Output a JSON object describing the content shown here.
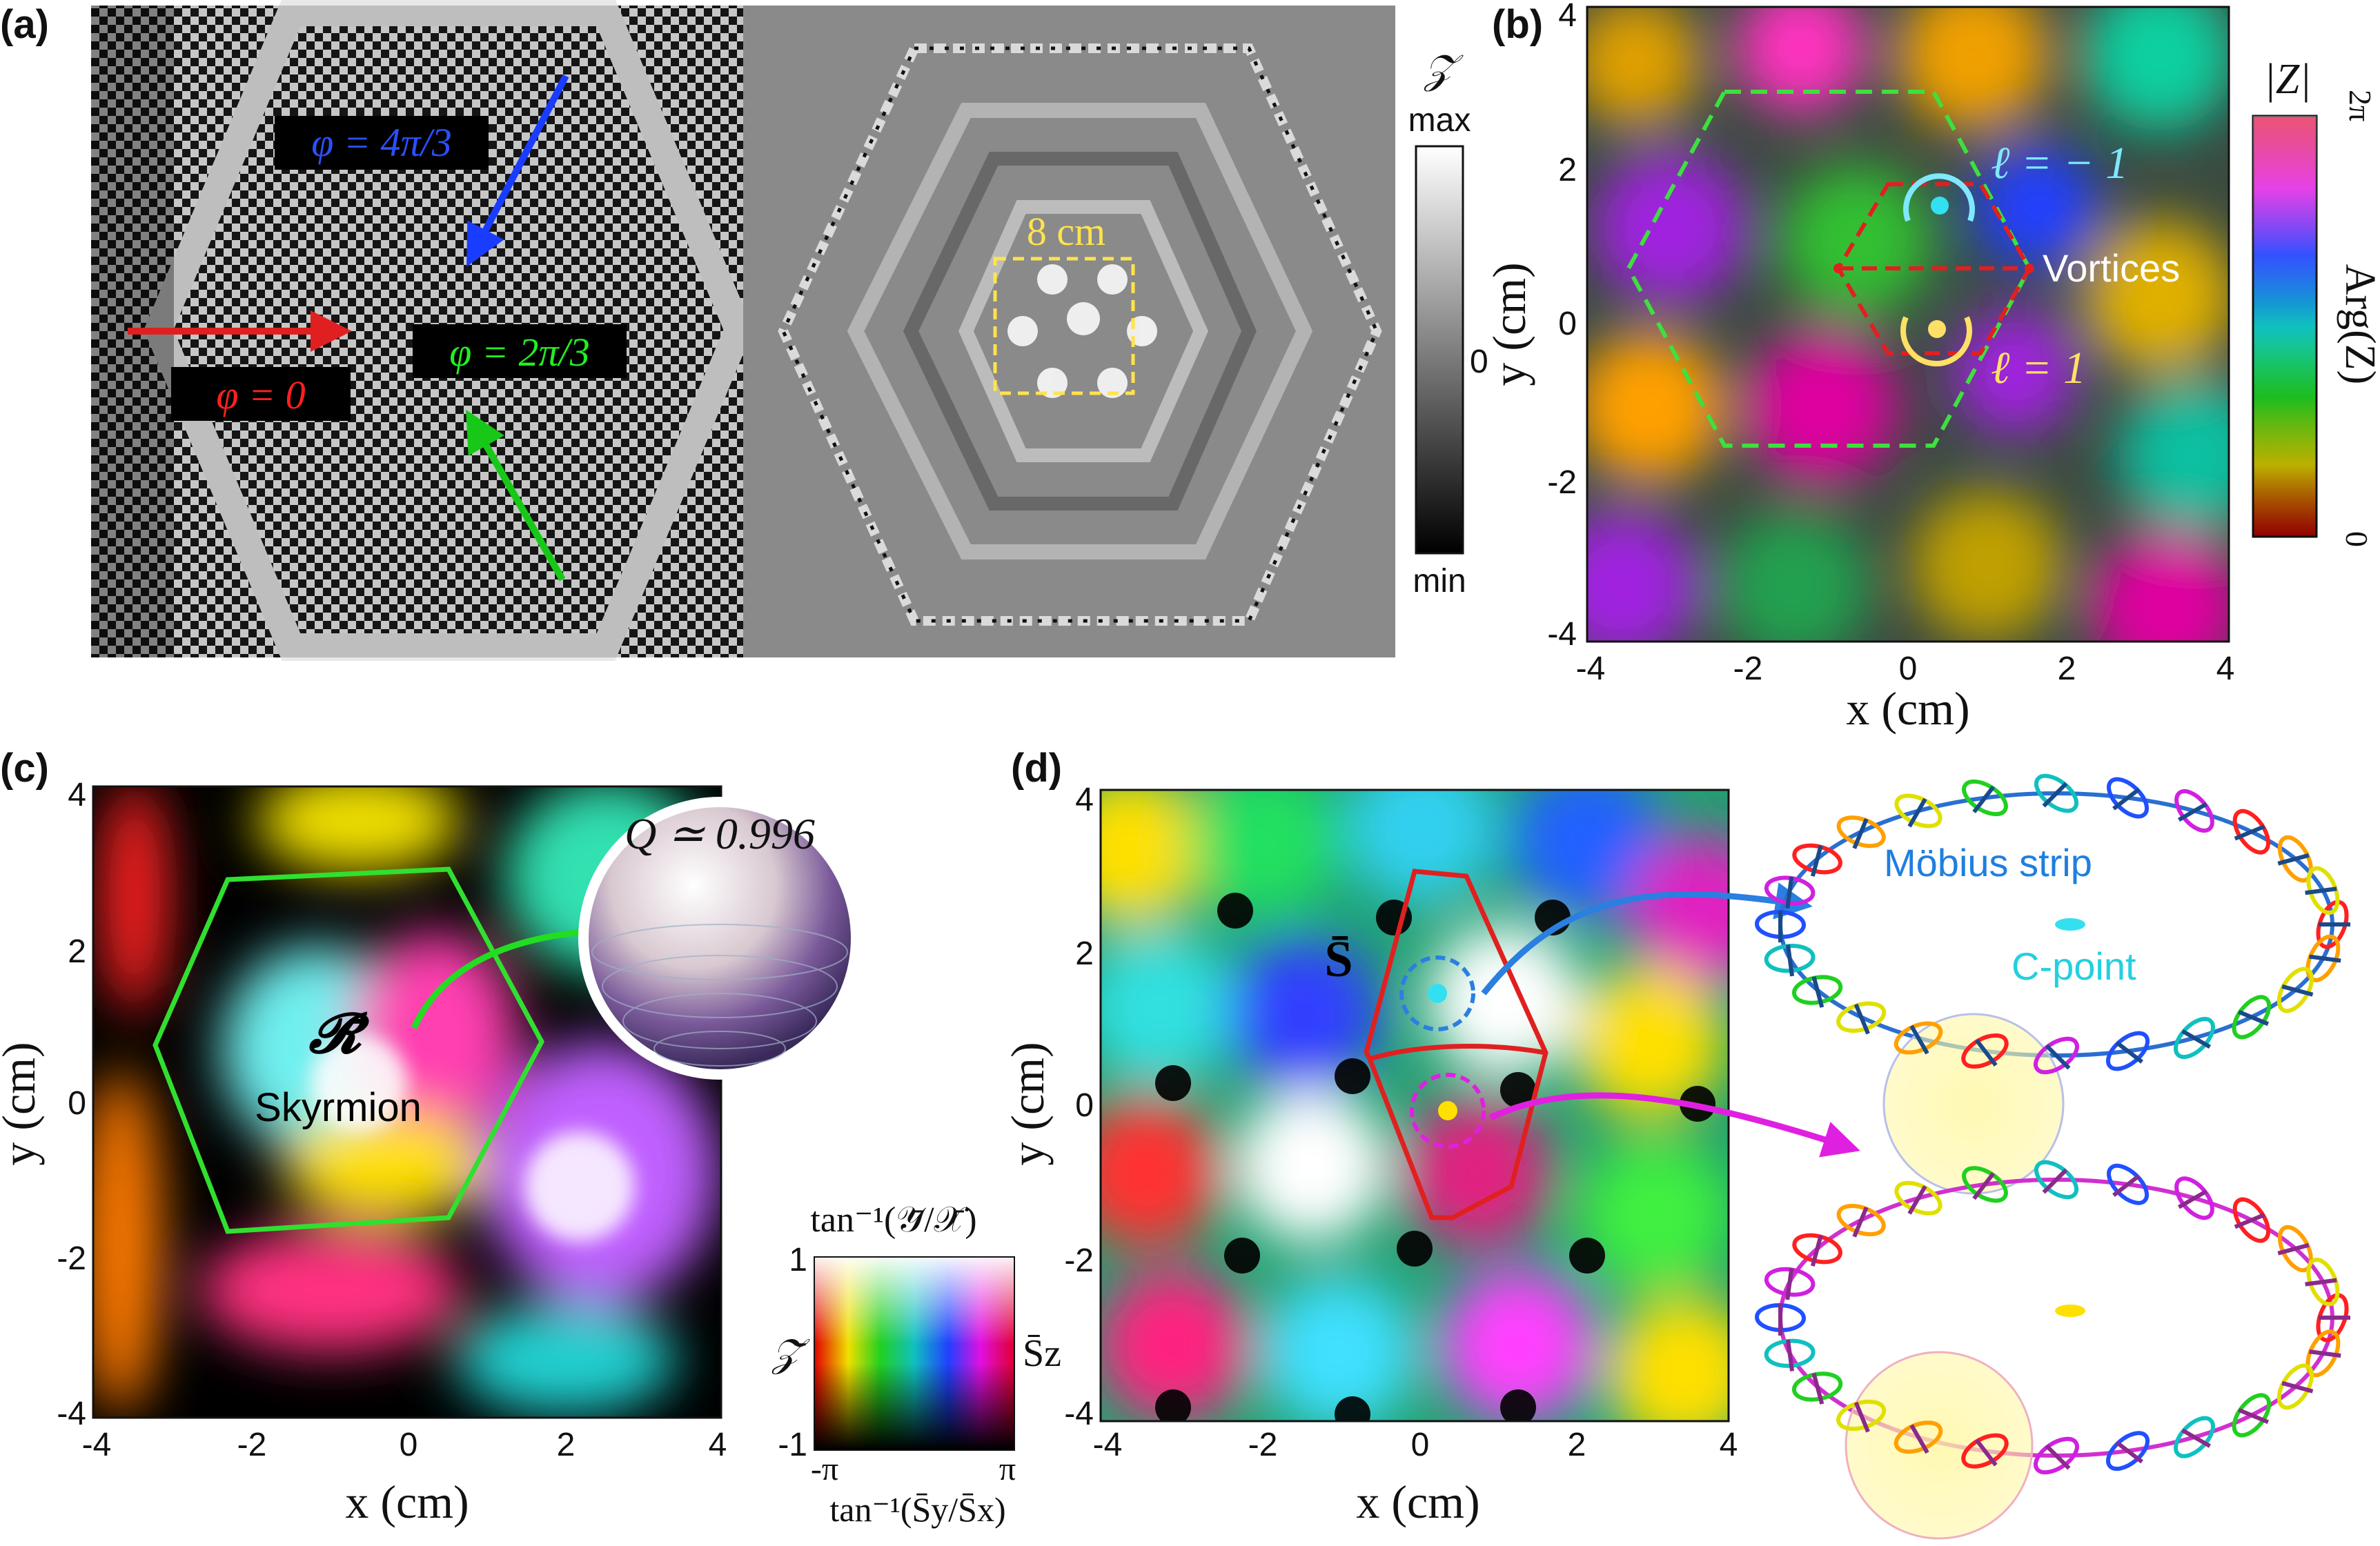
{
  "panels": {
    "a": {
      "label": "(a)",
      "phase_labels": [
        "φ = 4π/3",
        "φ = 0",
        "φ = 2π/3"
      ],
      "scale_text": "8 cm",
      "colorbar": {
        "title": "𝒵",
        "max": "max",
        "zero": "0",
        "min": "min"
      }
    },
    "b": {
      "label": "(b)",
      "xlabel": "x (cm)",
      "ylabel": "y (cm)",
      "ticks": [
        "-4",
        "-2",
        "0",
        "2",
        "4"
      ],
      "vortex_top": "ℓ = − 1",
      "vortex_bottom": "ℓ = 1",
      "vortices_text": "Vortices",
      "colorbar": {
        "title": "|Z|",
        "right_title": "Arg(Z)",
        "top": "2π",
        "bottom": "0"
      }
    },
    "c": {
      "label": "(c)",
      "xlabel": "x (cm)",
      "ylabel": "y (cm)",
      "ticks": [
        "-4",
        "-2",
        "0",
        "2",
        "4"
      ],
      "R_symbol": "𝓡̄",
      "skyrmion_text": "Skyrmion",
      "Q_text": "Q ≃ 0.996",
      "legend": {
        "title": "tan⁻¹(𝒴̄/𝒳̄)",
        "y_top": "1",
        "y_bottom": "-1",
        "left": "𝒵̄",
        "right": "S̄z",
        "x_left": "-π",
        "x_right": "π",
        "xlabel": "tan⁻¹(S̄y/S̄x)"
      }
    },
    "d": {
      "label": "(d)",
      "xlabel": "x (cm)",
      "ylabel": "y (cm)",
      "ticks": [
        "-4",
        "-2",
        "0",
        "2",
        "4"
      ],
      "S_symbol": "S̄",
      "mobius_text": "Möbius strip",
      "cpoint_text": "C-point"
    }
  },
  "colors": {
    "red": "#e02020",
    "blue": "#1a3cff",
    "green": "#18c818",
    "yellow": "#ffe066",
    "cyan": "#33e0f0",
    "magenta": "#e020e0"
  }
}
